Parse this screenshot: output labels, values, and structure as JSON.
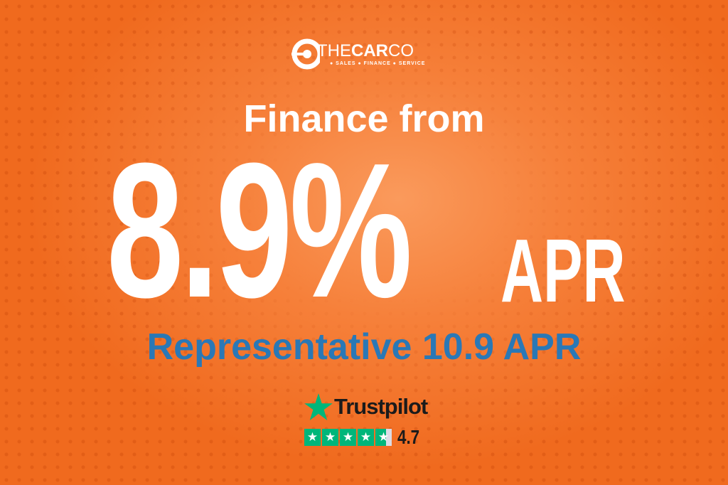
{
  "logo": {
    "brand_light_1": "THE",
    "brand_bold": "CAR",
    "brand_light_2": "CO",
    "tagline": "● SALES ● FINANCE ● SERVICE"
  },
  "headline": {
    "intro": "Finance from",
    "rate": "8.9%",
    "rate_suffix": "APR",
    "representative": "Representative 10.9 APR"
  },
  "trustpilot": {
    "name": "Trustpilot",
    "rating": "4.7",
    "rating_value": 4.7,
    "max_stars": 5,
    "star_color": "#00b67a"
  },
  "colors": {
    "background": "#f26a1f",
    "accent_text": "#2a78b6"
  }
}
